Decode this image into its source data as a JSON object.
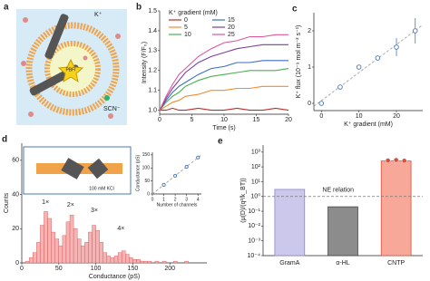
{
  "panel_a": {
    "label": "a",
    "texts": {
      "k": "K⁺",
      "pbfi": "PBFI",
      "scn": "SCN⁻"
    }
  },
  "chart_data": [
    {
      "type": "line",
      "label": "b",
      "xlabel": "Time (s)",
      "ylabel": "Intensity (F/F₀)",
      "legend_title": "K⁺ gradient (mM)",
      "x": [
        0,
        1,
        2,
        3,
        4,
        6,
        8,
        10,
        12,
        14,
        16,
        18,
        20
      ],
      "series": [
        {
          "name": "0",
          "color": "#b5302a",
          "values": [
            1.0,
            1.0,
            1.01,
            1.0,
            1.0,
            1.01,
            1.0,
            1.0,
            1.01,
            1.0,
            1.0,
            1.01,
            1.0
          ]
        },
        {
          "name": "5",
          "color": "#f28b30",
          "values": [
            1.0,
            1.02,
            1.04,
            1.05,
            1.07,
            1.08,
            1.1,
            1.1,
            1.11,
            1.11,
            1.12,
            1.12,
            1.12
          ]
        },
        {
          "name": "10",
          "color": "#4caf50",
          "values": [
            1.0,
            1.04,
            1.07,
            1.09,
            1.12,
            1.15,
            1.17,
            1.18,
            1.19,
            1.2,
            1.2,
            1.2,
            1.21
          ]
        },
        {
          "name": "15",
          "color": "#3b6fc4",
          "values": [
            1.0,
            1.05,
            1.09,
            1.12,
            1.14,
            1.18,
            1.21,
            1.22,
            1.24,
            1.24,
            1.25,
            1.25,
            1.25
          ]
        },
        {
          "name": "20",
          "color": "#7b3fa0",
          "values": [
            1.0,
            1.06,
            1.11,
            1.15,
            1.19,
            1.24,
            1.27,
            1.29,
            1.31,
            1.32,
            1.33,
            1.33,
            1.33
          ]
        },
        {
          "name": "25",
          "color": "#e0559a",
          "values": [
            1.0,
            1.07,
            1.13,
            1.18,
            1.21,
            1.27,
            1.31,
            1.34,
            1.35,
            1.37,
            1.37,
            1.38,
            1.38
          ]
        }
      ],
      "xlim": [
        0,
        20
      ],
      "ylim": [
        0.98,
        1.5
      ],
      "xticks": [
        0,
        5,
        10,
        15,
        20
      ],
      "yticks": [
        {
          "value": 1,
          "label": "1.0"
        },
        1.1,
        1.2,
        1.3,
        1.4,
        1.5
      ]
    },
    {
      "type": "scatter",
      "label": "c",
      "xlabel": "K⁺ gradient (mM)",
      "ylabel": "K⁺ flux (10⁻⁹ mol m⁻² s⁻¹)",
      "x": [
        0,
        5,
        10,
        15,
        20,
        25
      ],
      "values": [
        0,
        0.45,
        1,
        1.25,
        1.55,
        2
      ],
      "errors": [
        0.03,
        0.04,
        0.05,
        0.06,
        0.25,
        0.35
      ],
      "color": "#4a78b5",
      "fit_line": true,
      "xlim": [
        -2,
        27
      ],
      "ylim": [
        -0.2,
        2.5
      ],
      "xticks": [
        0,
        10,
        20
      ],
      "yticks": [
        0,
        1,
        2
      ]
    },
    {
      "type": "histogram",
      "label": "d",
      "xlabel": "Conductance (pS)",
      "ylabel": "Counts",
      "inset_text": "100 mM KCl",
      "bins": [
        0,
        5,
        10,
        15,
        20,
        25,
        30,
        35,
        40,
        45,
        50,
        55,
        60,
        65,
        70,
        75,
        80,
        85,
        90,
        95,
        100,
        105,
        110,
        115,
        120,
        125,
        130,
        135,
        140,
        145,
        150,
        155,
        160,
        165,
        170,
        175,
        180,
        185,
        190,
        195,
        200,
        205,
        210,
        215,
        220,
        225,
        230,
        235,
        240,
        245,
        250
      ],
      "values": [
        0,
        1,
        3,
        6,
        12,
        22,
        30,
        26,
        18,
        14,
        10,
        16,
        24,
        28,
        20,
        14,
        10,
        12,
        18,
        22,
        19,
        12,
        6,
        4,
        3,
        4,
        6,
        7,
        5,
        3,
        2,
        2,
        1,
        1,
        1,
        0,
        1,
        0,
        1,
        0,
        0,
        1,
        0,
        0,
        1,
        0,
        0,
        0,
        0,
        0
      ],
      "annotations": [
        "1×",
        "2×",
        "3×",
        "4×"
      ],
      "color": "#f6b3b3",
      "edge_color": "#d05050",
      "xlim": [
        0,
        250
      ],
      "ylim": [
        0,
        70
      ],
      "xticks": [
        0,
        50,
        100,
        150,
        200
      ],
      "yticks": [
        0,
        20,
        40,
        60
      ]
    },
    {
      "type": "scatter",
      "xlabel": "Number of channels",
      "ylabel": "Conductance (pS)",
      "x": [
        1,
        2,
        3,
        4
      ],
      "values": [
        35,
        70,
        104,
        140
      ],
      "color": "#4a78b5",
      "fit_line": true,
      "xlim": [
        0,
        4.3
      ],
      "ylim": [
        0,
        160
      ],
      "xticks": [
        0,
        1,
        2,
        3,
        4
      ],
      "yticks": [
        0,
        50,
        100,
        150
      ]
    },
    {
      "type": "bar",
      "label": "e",
      "ylabel": "(μ(D)/(q²/k_BT))",
      "categories": [
        "GramA",
        "α-HL",
        "CNTP"
      ],
      "values": [
        3,
        0.2,
        250
      ],
      "colors": [
        "#cbc8ec",
        "#8c8c8c",
        "#f7a898"
      ],
      "edge_colors": [
        "#8a86c9",
        "#444444",
        "#d9503f"
      ],
      "points": [
        270,
        290,
        260
      ],
      "point_color": "#d9503f",
      "reference": 1,
      "reference_label": "NE relation",
      "log_scale": true,
      "ylim": [
        0.0001,
        3000
      ],
      "yticks": [
        {
          "value": 0.0001,
          "label": "10⁻⁴"
        },
        {
          "value": 0.001,
          "label": "10⁻³"
        },
        {
          "value": 0.01,
          "label": "10⁻²"
        },
        {
          "value": 0.1,
          "label": "10⁻¹"
        },
        {
          "value": 1,
          "label": "10⁰"
        },
        {
          "value": 10,
          "label": "10¹"
        },
        {
          "value": 100,
          "label": "10²"
        },
        {
          "value": 1000,
          "label": "10³"
        }
      ]
    }
  ]
}
